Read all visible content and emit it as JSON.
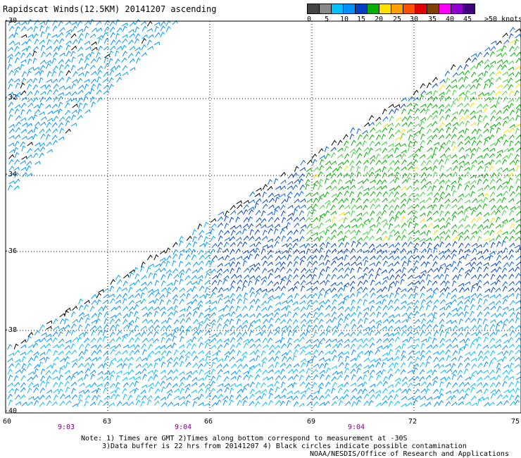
{
  "title": "Rapidscat Winds(12.5KM) 20141207 ascending",
  "legend": {
    "colors": [
      "#444444",
      "#888888",
      "#00c0ff",
      "#0090ff",
      "#0040c0",
      "#00b000",
      "#ffe000",
      "#ffa000",
      "#ff5000",
      "#e00000",
      "#804000",
      "#ff00ff",
      "#9000d0",
      "#400080"
    ],
    "labels": [
      "0",
      "5",
      "10",
      "15",
      "20",
      "25",
      "30",
      "35",
      "40",
      "45",
      ">50 knots"
    ]
  },
  "map": {
    "latitudes": [
      "-30",
      "-32",
      "-34",
      "-36",
      "-38",
      "-40"
    ],
    "longitudes": [
      "60",
      "63",
      "66",
      "69",
      "72",
      "75"
    ],
    "pass_times": [
      "9:03",
      "9:04",
      "9:04"
    ]
  },
  "notes": {
    "line1": "Note: 1) Times are GMT 2)Times along bottom correspond to measurement at -30S",
    "line2": "3)Data buffer is 22 hrs from 20141207 4) Black circles indicate possible contamination",
    "line3": "NOAA/NESDIS/Office of Research and Applications"
  }
}
